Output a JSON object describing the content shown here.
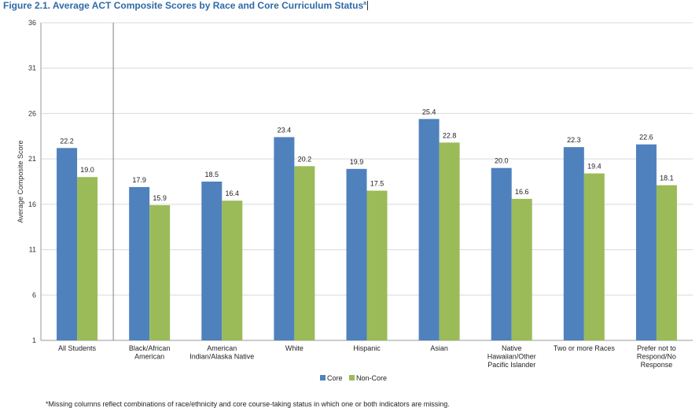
{
  "title": "Figure 2.1.  Average ACT Composite Scores by Race and Core Curriculum Status",
  "title_mark": "a",
  "footnote": "*Missing columns reflect combinations of race/ethnicity and core course-taking status in which one or both indicators are missing.",
  "chart_data": {
    "type": "bar",
    "title": "Figure 2.1.  Average ACT Composite Scores by Race and Core Curriculum Status",
    "xlabel": "",
    "ylabel": "Average Composite Score",
    "ylim": [
      1,
      36
    ],
    "yticks": [
      "1",
      "6",
      "11",
      "16",
      "21",
      "26",
      "31",
      "36"
    ],
    "grid": true,
    "legend_position": "bottom-center",
    "categories": [
      [
        "All Students"
      ],
      [
        "Black/African",
        "American"
      ],
      [
        "American",
        "Indian/Alaska Native"
      ],
      [
        "White"
      ],
      [
        "Hispanic"
      ],
      [
        "Asian"
      ],
      [
        "Native",
        "Hawaiian/Other",
        "Pacific Islander"
      ],
      [
        "Two or more Races"
      ],
      [
        "Prefer not to",
        "Respond/No",
        "Response"
      ]
    ],
    "series": [
      {
        "name": "Core",
        "color": "#4f81bd",
        "values": [
          22.2,
          17.9,
          18.5,
          23.4,
          19.9,
          25.4,
          20.0,
          22.3,
          22.6
        ],
        "labels": [
          "22.2",
          "17.9",
          "18.5",
          "23.4",
          "19.9",
          "25.4",
          "20.0",
          "22.3",
          "22.6"
        ]
      },
      {
        "name": "Non-Core",
        "color": "#9bbb59",
        "values": [
          19.0,
          15.9,
          16.4,
          20.2,
          17.5,
          22.8,
          16.6,
          19.4,
          18.1
        ],
        "labels": [
          "19.0",
          "15.9",
          "16.4",
          "20.2",
          "17.5",
          "22.8",
          "16.6",
          "19.4",
          "18.1"
        ]
      }
    ]
  }
}
